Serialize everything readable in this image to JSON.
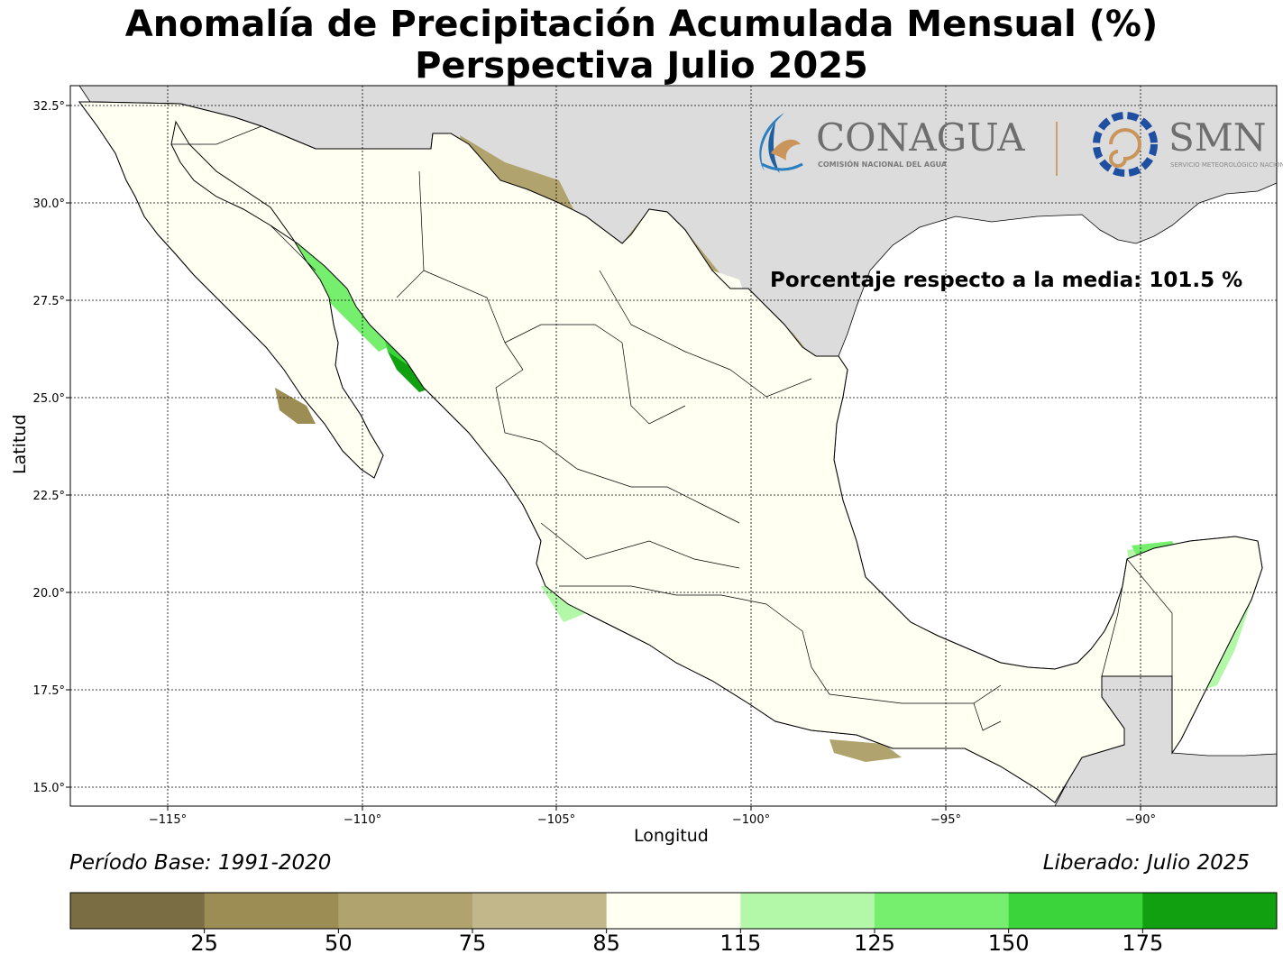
{
  "title_line1": "Anomalía de Precipitación Acumulada Mensual (%)",
  "title_line2": "Perspectiva Julio 2025",
  "xlabel": "Longitud",
  "ylabel": "Latitud",
  "annotation_mean": "Porcentaje respecto a la media: 101.5 %",
  "base_period": "Período Base: 1991-2020",
  "released": "Liberado: Julio 2025",
  "logo": {
    "conagua_name": "CONAGUA",
    "conagua_sub": "COMISIÓN NACIONAL DEL AGUA",
    "smn_name": "SMN",
    "smn_sub": "SERVICIO METEOROLÓGICO NACIONAL"
  },
  "map": {
    "lon_range": [
      -117.5,
      -86.5
    ],
    "lat_range": [
      14.5,
      33.0
    ],
    "lon_ticks": [
      {
        "value": -115,
        "label": "−115°"
      },
      {
        "value": -110,
        "label": "−110°"
      },
      {
        "value": -105,
        "label": "−105°"
      },
      {
        "value": -100,
        "label": "−100°"
      },
      {
        "value": -95,
        "label": "−95°"
      },
      {
        "value": -90,
        "label": "−90°"
      }
    ],
    "lat_ticks": [
      {
        "value": 32.5,
        "label": "32.5°"
      },
      {
        "value": 30.0,
        "label": "30.0°"
      },
      {
        "value": 27.5,
        "label": "27.5°"
      },
      {
        "value": 25.0,
        "label": "25.0°"
      },
      {
        "value": 22.5,
        "label": "22.5°"
      },
      {
        "value": 20.0,
        "label": "20.0°"
      },
      {
        "value": 17.5,
        "label": "17.5°"
      },
      {
        "value": 15.0,
        "label": "15.0°"
      }
    ],
    "colors": {
      "ocean": "#ffffff",
      "other_land": "#dcdcdc",
      "near_normal": "#fffff2"
    }
  },
  "colorbar": {
    "ticks": [
      "25",
      "50",
      "75",
      "85",
      "115",
      "125",
      "150",
      "175"
    ],
    "colors": [
      "#7a6c43",
      "#9c8d55",
      "#b0a36d",
      "#c1b78a",
      "#fffff2",
      "#b2f8a8",
      "#77ef6e",
      "#3bd43b",
      "#10a010"
    ]
  }
}
